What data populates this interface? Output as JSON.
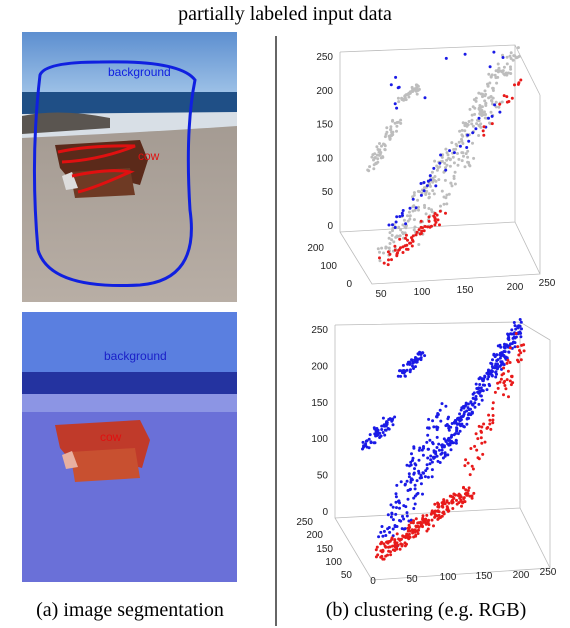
{
  "header": {
    "title": "partially labeled input data"
  },
  "panels": [
    {
      "caption": "(a) image segmentation",
      "images": [
        {
          "labels": [
            "background",
            "cow"
          ]
        },
        {
          "labels": [
            "background",
            "cow"
          ]
        }
      ]
    },
    {
      "caption": "(b) clustering (e.g. RGB)",
      "plots": [
        {
          "vertical_ticks": [
            0,
            50,
            100,
            150,
            200,
            250
          ],
          "depth_ticks": [
            0,
            100,
            200
          ],
          "horizontal_ticks": [
            50,
            100,
            150,
            200,
            250
          ]
        },
        {
          "vertical_ticks": [
            0,
            50,
            100,
            150,
            200,
            250
          ],
          "depth_ticks": [
            50,
            100,
            150,
            200,
            250
          ],
          "horizontal_ticks": [
            0,
            50,
            100,
            150,
            200,
            250
          ]
        }
      ]
    }
  ]
}
